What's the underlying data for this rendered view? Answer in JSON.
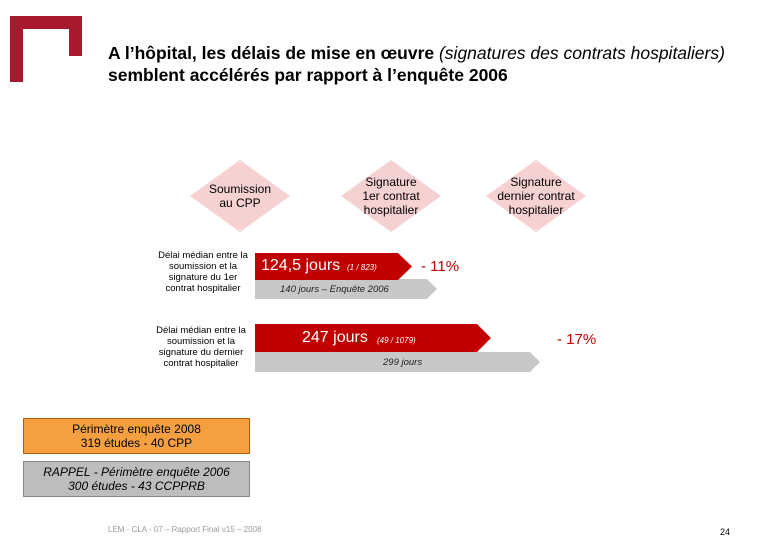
{
  "title": {
    "part1": "A l’hôpital, les délais de mise en œuvre ",
    "part2": "(signatures des contrats hospitaliers)",
    "part3": " semblent accélérés par rapport à l’enquête 2006"
  },
  "milestones": [
    {
      "label": "Soumission au CPP"
    },
    {
      "label": "Signature 1er contrat hospitalier"
    },
    {
      "label": "Signature dernier contrat hospitalier"
    }
  ],
  "rows": [
    {
      "label": "Délai médian entre la soumission et la signature du 1er contrat hospitalier",
      "value": "124,5 jours",
      "sub": "(1 / 823)",
      "previous": "140 jours – Enquête 2006",
      "change": "- 11%"
    },
    {
      "label": "Délai médian entre la soumission et la signature du dernier contrat hospitalier",
      "value": "247 jours",
      "sub": "(49 / 1079)",
      "previous": "299 jours",
      "change": "- 17%"
    }
  ],
  "perimeter2008": {
    "line1": "Périmètre enquête 2008",
    "line2": "319 études - 40 CPP"
  },
  "perimeter2006": {
    "line1": "RAPPEL - Périmètre enquête 2006",
    "line2": "300 études - 43 CCPPRB"
  },
  "footer": "LEM - CLA - 07 – Rapport Final v15 – 2008",
  "page_number": "24",
  "colors": {
    "accent": "#c00000",
    "diamond": "#f6d1d1",
    "gray_bar": "#c8c8c8",
    "orange": "#f4a040"
  }
}
